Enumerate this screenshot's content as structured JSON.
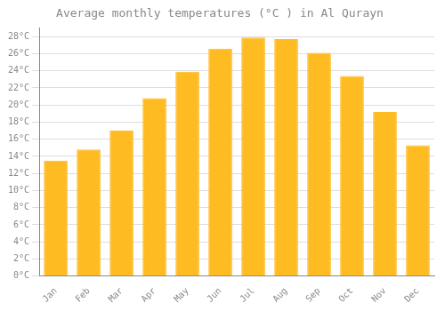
{
  "chart_data": {
    "type": "bar",
    "title": "Average monthly temperatures (°C ) in Al Qurayn",
    "categories": [
      "Jan",
      "Feb",
      "Mar",
      "Apr",
      "May",
      "Jun",
      "Jul",
      "Aug",
      "Sep",
      "Oct",
      "Nov",
      "Dec"
    ],
    "values": [
      13.5,
      14.8,
      17.0,
      20.8,
      23.9,
      26.6,
      27.9,
      27.7,
      26.1,
      23.4,
      19.2,
      15.3
    ],
    "color": "#FFBB22",
    "ylim": [
      0,
      29
    ],
    "yticks": [
      {
        "value": 0,
        "label": "0°C"
      },
      {
        "value": 2,
        "label": "2°C"
      },
      {
        "value": 4,
        "label": "4°C"
      },
      {
        "value": 6,
        "label": "6°C"
      },
      {
        "value": 8,
        "label": "8°C"
      },
      {
        "value": 10,
        "label": "10°C"
      },
      {
        "value": 12,
        "label": "12°C"
      },
      {
        "value": 14,
        "label": "14°C"
      },
      {
        "value": 16,
        "label": "16°C"
      },
      {
        "value": 18,
        "label": "18°C"
      },
      {
        "value": 20,
        "label": "20°C"
      },
      {
        "value": 22,
        "label": "22°C"
      },
      {
        "value": 24,
        "label": "24°C"
      },
      {
        "value": 26,
        "label": "26°C"
      },
      {
        "value": 28,
        "label": "28°C"
      }
    ],
    "grid": true
  }
}
